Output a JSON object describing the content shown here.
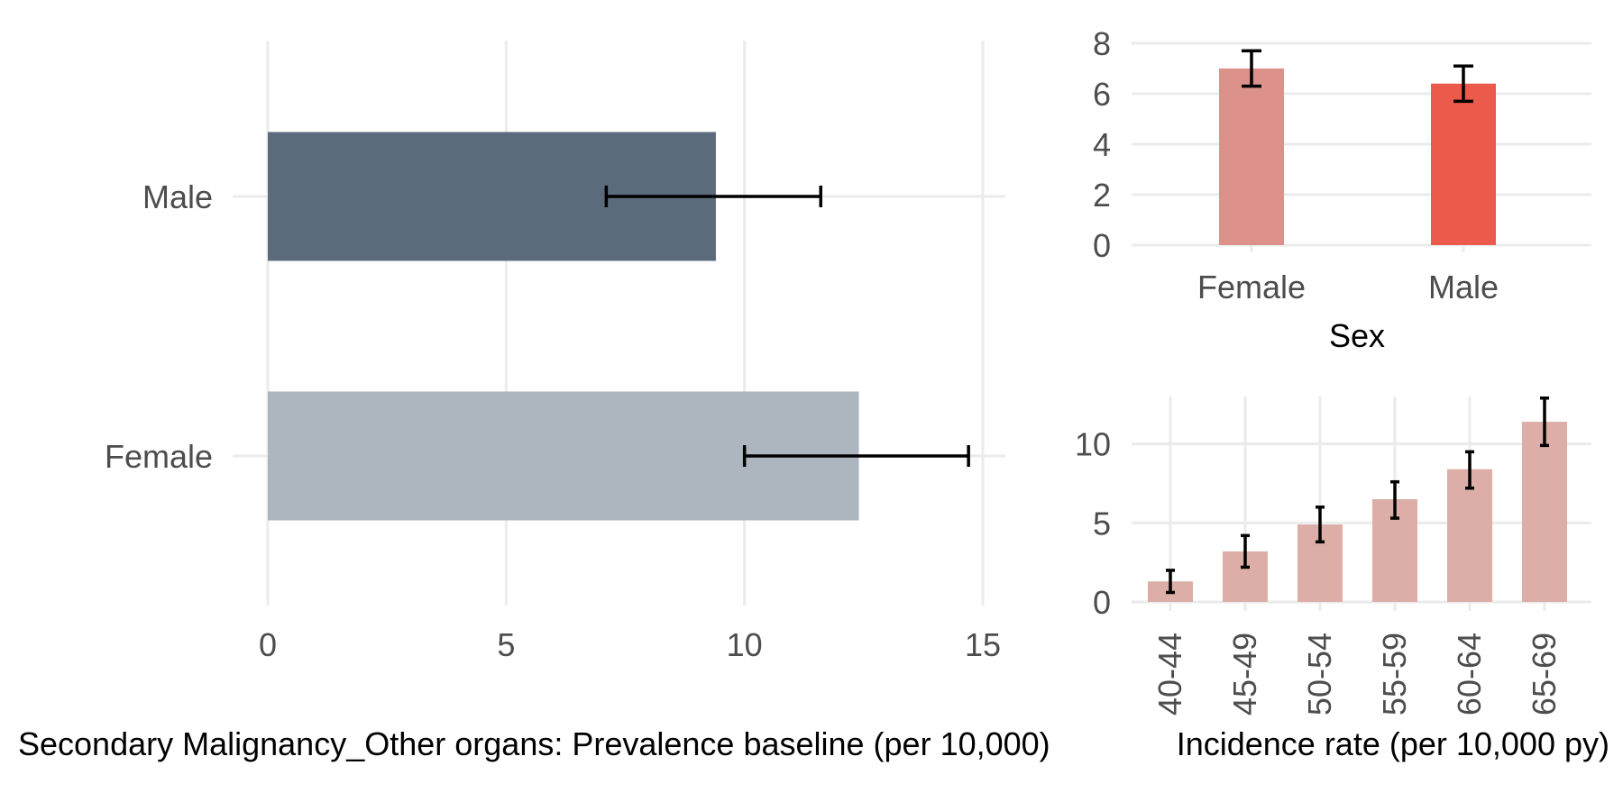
{
  "chart_data": [
    {
      "type": "bar",
      "orientation": "horizontal",
      "categories": [
        "Male",
        "Female"
      ],
      "values": [
        9.4,
        12.4
      ],
      "ci_low": [
        7.1,
        10.0
      ],
      "ci_high": [
        11.6,
        14.7
      ],
      "colors": [
        "#5b6b7c",
        "#adb5bf"
      ],
      "xlabel": "Secondary Malignancy_Other organs: Prevalence baseline (per 10,000)",
      "xlim": [
        0,
        15
      ],
      "xticks": [
        0,
        5,
        10,
        15
      ],
      "grid": true
    },
    {
      "type": "bar",
      "categories": [
        "Female",
        "Male"
      ],
      "values": [
        7.0,
        6.4
      ],
      "ci_low": [
        6.3,
        5.7
      ],
      "ci_high": [
        7.7,
        7.1
      ],
      "colors": [
        "#dc928a",
        "#ec5a4b"
      ],
      "xlabel": "Sex",
      "ylim": [
        0,
        8
      ],
      "yticks": [
        0,
        2,
        4,
        6,
        8
      ],
      "grid": true
    },
    {
      "type": "bar",
      "categories": [
        "40-44",
        "45-49",
        "50-54",
        "55-59",
        "60-64",
        "65-69"
      ],
      "values": [
        1.3,
        3.2,
        4.9,
        6.5,
        8.4,
        11.4
      ],
      "ci_low": [
        0.6,
        2.2,
        3.8,
        5.3,
        7.2,
        9.9
      ],
      "ci_high": [
        2.0,
        4.2,
        6.0,
        7.6,
        9.5,
        12.9
      ],
      "colors": [
        "#dcaea7"
      ],
      "xlabel": "Incidence rate (per 10,000 py)",
      "ylim": [
        0,
        13
      ],
      "yticks": [
        0,
        5,
        10
      ],
      "grid": true
    }
  ]
}
